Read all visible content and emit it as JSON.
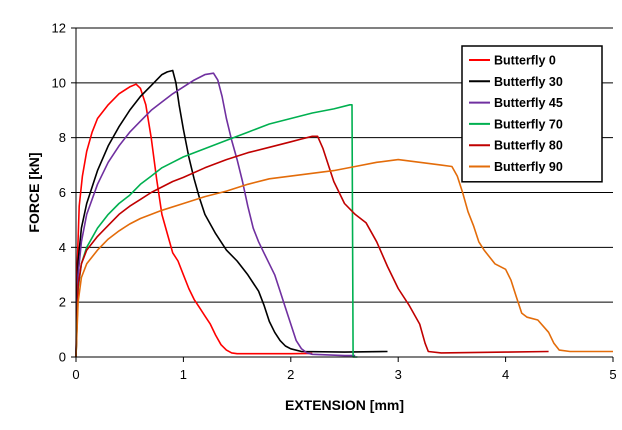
{
  "chart_data": {
    "type": "line",
    "title": "",
    "xlabel": "EXTENSION [mm]",
    "ylabel": "FORCE [kN]",
    "xlim": [
      0,
      5
    ],
    "ylim": [
      0,
      12
    ],
    "xticks": [
      0,
      1,
      2,
      3,
      4,
      5
    ],
    "yticks": [
      0,
      2,
      4,
      6,
      8,
      10,
      12
    ],
    "grid": "horizontal",
    "legend_position": "top-right",
    "series": [
      {
        "name": "Butterfly 0",
        "color": "#ff0000",
        "points": [
          [
            0,
            0
          ],
          [
            0.01,
            3.2
          ],
          [
            0.03,
            5.5
          ],
          [
            0.06,
            6.6
          ],
          [
            0.1,
            7.5
          ],
          [
            0.15,
            8.2
          ],
          [
            0.2,
            8.7
          ],
          [
            0.3,
            9.2
          ],
          [
            0.4,
            9.6
          ],
          [
            0.5,
            9.85
          ],
          [
            0.56,
            9.95
          ],
          [
            0.6,
            9.8
          ],
          [
            0.65,
            9.2
          ],
          [
            0.7,
            8.0
          ],
          [
            0.75,
            6.5
          ],
          [
            0.8,
            5.2
          ],
          [
            0.85,
            4.5
          ],
          [
            0.9,
            3.8
          ],
          [
            0.95,
            3.5
          ],
          [
            1.0,
            3.0
          ],
          [
            1.05,
            2.5
          ],
          [
            1.1,
            2.1
          ],
          [
            1.15,
            1.8
          ],
          [
            1.2,
            1.5
          ],
          [
            1.25,
            1.2
          ],
          [
            1.3,
            0.8
          ],
          [
            1.35,
            0.45
          ],
          [
            1.4,
            0.25
          ],
          [
            1.45,
            0.15
          ],
          [
            1.5,
            0.12
          ],
          [
            2.0,
            0.12
          ],
          [
            2.2,
            0.13
          ]
        ]
      },
      {
        "name": "Butterfly 30",
        "color": "#000000",
        "points": [
          [
            0,
            0
          ],
          [
            0.02,
            3.5
          ],
          [
            0.05,
            4.7
          ],
          [
            0.1,
            5.6
          ],
          [
            0.2,
            6.8
          ],
          [
            0.3,
            7.7
          ],
          [
            0.4,
            8.4
          ],
          [
            0.5,
            9.0
          ],
          [
            0.6,
            9.5
          ],
          [
            0.7,
            9.9
          ],
          [
            0.8,
            10.3
          ],
          [
            0.85,
            10.4
          ],
          [
            0.9,
            10.45
          ],
          [
            0.93,
            10.0
          ],
          [
            0.96,
            9.2
          ],
          [
            1.0,
            8.3
          ],
          [
            1.05,
            7.3
          ],
          [
            1.1,
            6.5
          ],
          [
            1.15,
            5.8
          ],
          [
            1.2,
            5.2
          ],
          [
            1.3,
            4.5
          ],
          [
            1.4,
            3.9
          ],
          [
            1.5,
            3.5
          ],
          [
            1.6,
            3.0
          ],
          [
            1.7,
            2.4
          ],
          [
            1.75,
            1.9
          ],
          [
            1.8,
            1.3
          ],
          [
            1.85,
            0.9
          ],
          [
            1.9,
            0.6
          ],
          [
            1.95,
            0.4
          ],
          [
            2.0,
            0.3
          ],
          [
            2.1,
            0.2
          ],
          [
            2.5,
            0.18
          ],
          [
            2.9,
            0.2
          ]
        ]
      },
      {
        "name": "Butterfly 45",
        "color": "#7030a0",
        "points": [
          [
            0,
            0
          ],
          [
            0.02,
            3.0
          ],
          [
            0.05,
            4.2
          ],
          [
            0.1,
            5.2
          ],
          [
            0.2,
            6.3
          ],
          [
            0.3,
            7.1
          ],
          [
            0.4,
            7.7
          ],
          [
            0.5,
            8.2
          ],
          [
            0.6,
            8.6
          ],
          [
            0.7,
            9.0
          ],
          [
            0.8,
            9.3
          ],
          [
            0.9,
            9.6
          ],
          [
            1.0,
            9.85
          ],
          [
            1.1,
            10.1
          ],
          [
            1.2,
            10.3
          ],
          [
            1.28,
            10.35
          ],
          [
            1.32,
            10.1
          ],
          [
            1.36,
            9.5
          ],
          [
            1.4,
            8.7
          ],
          [
            1.45,
            7.9
          ],
          [
            1.5,
            7.2
          ],
          [
            1.55,
            6.4
          ],
          [
            1.6,
            5.5
          ],
          [
            1.65,
            4.7
          ],
          [
            1.7,
            4.2
          ],
          [
            1.75,
            3.8
          ],
          [
            1.8,
            3.4
          ],
          [
            1.85,
            3.0
          ],
          [
            1.9,
            2.4
          ],
          [
            1.95,
            1.8
          ],
          [
            2.0,
            1.2
          ],
          [
            2.05,
            0.6
          ],
          [
            2.1,
            0.3
          ],
          [
            2.15,
            0.15
          ],
          [
            2.2,
            0.1
          ],
          [
            2.5,
            0.05
          ],
          [
            2.6,
            0.05
          ]
        ]
      },
      {
        "name": "Butterfly 70",
        "color": "#00b050",
        "points": [
          [
            0,
            0
          ],
          [
            0.02,
            2.5
          ],
          [
            0.05,
            3.4
          ],
          [
            0.1,
            4.0
          ],
          [
            0.2,
            4.7
          ],
          [
            0.3,
            5.2
          ],
          [
            0.4,
            5.6
          ],
          [
            0.5,
            5.9
          ],
          [
            0.6,
            6.3
          ],
          [
            0.7,
            6.6
          ],
          [
            0.8,
            6.9
          ],
          [
            0.9,
            7.1
          ],
          [
            1.0,
            7.3
          ],
          [
            1.2,
            7.6
          ],
          [
            1.4,
            7.9
          ],
          [
            1.6,
            8.2
          ],
          [
            1.8,
            8.5
          ],
          [
            2.0,
            8.7
          ],
          [
            2.2,
            8.9
          ],
          [
            2.4,
            9.05
          ],
          [
            2.55,
            9.2
          ],
          [
            2.57,
            9.2
          ],
          [
            2.58,
            0.0
          ],
          [
            2.62,
            0.0
          ]
        ]
      },
      {
        "name": "Butterfly 80",
        "color": "#c00000",
        "points": [
          [
            0,
            0
          ],
          [
            0.02,
            2.6
          ],
          [
            0.05,
            3.4
          ],
          [
            0.1,
            3.9
          ],
          [
            0.2,
            4.4
          ],
          [
            0.3,
            4.8
          ],
          [
            0.4,
            5.2
          ],
          [
            0.5,
            5.5
          ],
          [
            0.6,
            5.75
          ],
          [
            0.7,
            6.0
          ],
          [
            0.8,
            6.2
          ],
          [
            0.9,
            6.4
          ],
          [
            1.0,
            6.55
          ],
          [
            1.2,
            6.9
          ],
          [
            1.4,
            7.2
          ],
          [
            1.6,
            7.45
          ],
          [
            1.8,
            7.65
          ],
          [
            2.0,
            7.85
          ],
          [
            2.1,
            7.95
          ],
          [
            2.2,
            8.05
          ],
          [
            2.25,
            8.05
          ],
          [
            2.3,
            7.6
          ],
          [
            2.35,
            7.0
          ],
          [
            2.4,
            6.4
          ],
          [
            2.5,
            5.6
          ],
          [
            2.6,
            5.2
          ],
          [
            2.7,
            4.9
          ],
          [
            2.8,
            4.2
          ],
          [
            2.9,
            3.3
          ],
          [
            3.0,
            2.5
          ],
          [
            3.1,
            1.9
          ],
          [
            3.2,
            1.2
          ],
          [
            3.25,
            0.5
          ],
          [
            3.28,
            0.2
          ],
          [
            3.4,
            0.15
          ],
          [
            4.0,
            0.18
          ],
          [
            4.4,
            0.2
          ]
        ]
      },
      {
        "name": "Butterfly 90",
        "color": "#e36c0a",
        "points": [
          [
            0,
            0
          ],
          [
            0.02,
            2.0
          ],
          [
            0.05,
            2.9
          ],
          [
            0.1,
            3.4
          ],
          [
            0.2,
            3.9
          ],
          [
            0.3,
            4.3
          ],
          [
            0.4,
            4.6
          ],
          [
            0.5,
            4.85
          ],
          [
            0.6,
            5.05
          ],
          [
            0.7,
            5.2
          ],
          [
            0.8,
            5.35
          ],
          [
            1.0,
            5.6
          ],
          [
            1.2,
            5.85
          ],
          [
            1.4,
            6.05
          ],
          [
            1.6,
            6.3
          ],
          [
            1.8,
            6.5
          ],
          [
            2.0,
            6.6
          ],
          [
            2.2,
            6.7
          ],
          [
            2.4,
            6.8
          ],
          [
            2.6,
            6.95
          ],
          [
            2.8,
            7.1
          ],
          [
            3.0,
            7.2
          ],
          [
            3.2,
            7.1
          ],
          [
            3.4,
            7.0
          ],
          [
            3.5,
            6.95
          ],
          [
            3.55,
            6.6
          ],
          [
            3.6,
            6.0
          ],
          [
            3.65,
            5.3
          ],
          [
            3.7,
            4.8
          ],
          [
            3.75,
            4.2
          ],
          [
            3.8,
            3.9
          ],
          [
            3.9,
            3.4
          ],
          [
            4.0,
            3.2
          ],
          [
            4.05,
            2.8
          ],
          [
            4.1,
            2.2
          ],
          [
            4.15,
            1.6
          ],
          [
            4.2,
            1.45
          ],
          [
            4.3,
            1.35
          ],
          [
            4.4,
            0.9
          ],
          [
            4.45,
            0.5
          ],
          [
            4.5,
            0.25
          ],
          [
            4.6,
            0.2
          ],
          [
            5.0,
            0.2
          ]
        ]
      }
    ]
  }
}
